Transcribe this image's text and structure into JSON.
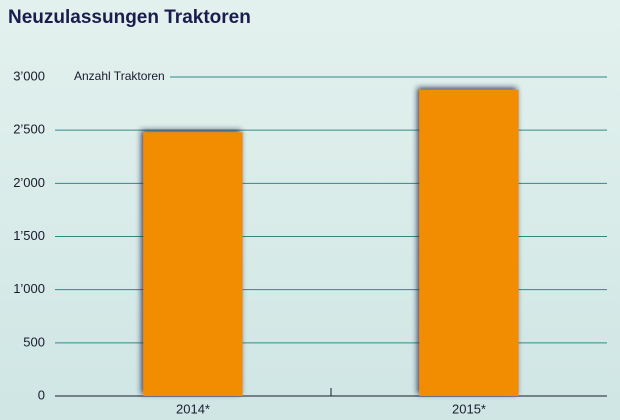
{
  "chart_data": {
    "type": "bar",
    "title": "Neuzulassungen Traktoren",
    "y_label": "Anzahl Traktoren",
    "categories": [
      "2014*",
      "2015*"
    ],
    "values": [
      2480,
      2880
    ],
    "color": "#f28c00",
    "ylim": [
      0,
      3000
    ],
    "yticks": [
      0,
      500,
      {
        "value": 1000,
        "label": "1’000"
      },
      {
        "value": 1500,
        "label": "1’500"
      },
      {
        "value": 2000,
        "label": "2’000"
      },
      {
        "value": 2500,
        "label": "2’500"
      },
      {
        "value": 3000,
        "label": "3’000"
      }
    ],
    "grid": true
  }
}
